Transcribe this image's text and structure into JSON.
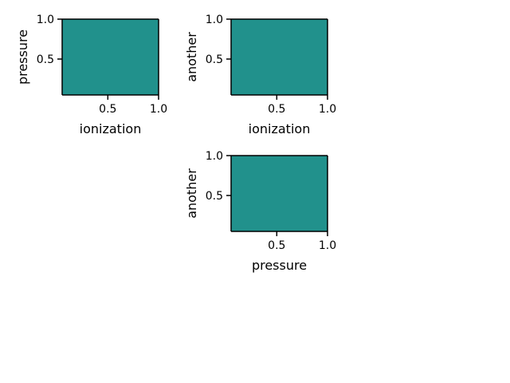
{
  "page": {
    "background": "#ffffff"
  },
  "chart_data": [
    {
      "type": "heatmap",
      "title": "",
      "xlabel": "ionization",
      "ylabel": "pressure",
      "xlim": [
        0.05,
        1.0
      ],
      "ylim": [
        0.05,
        1.0
      ],
      "xticks": [
        0.5,
        1.0
      ],
      "yticks": [
        0.5,
        1.0
      ],
      "xtick_labels": [
        "0.5",
        "1.0"
      ],
      "ytick_labels": [
        "0.5",
        "1.0"
      ],
      "fill_color": "#21918c",
      "grid": false,
      "legend": "none"
    },
    {
      "type": "heatmap",
      "title": "",
      "xlabel": "ionization",
      "ylabel": "another",
      "xlim": [
        0.05,
        1.0
      ],
      "ylim": [
        0.05,
        1.0
      ],
      "xticks": [
        0.5,
        1.0
      ],
      "yticks": [
        0.5,
        1.0
      ],
      "xtick_labels": [
        "0.5",
        "1.0"
      ],
      "ytick_labels": [
        "0.5",
        "1.0"
      ],
      "fill_color": "#21918c",
      "grid": false,
      "legend": "none"
    },
    {
      "type": "heatmap",
      "title": "",
      "xlabel": "pressure",
      "ylabel": "another",
      "xlim": [
        0.05,
        1.0
      ],
      "ylim": [
        0.05,
        1.0
      ],
      "xticks": [
        0.5,
        1.0
      ],
      "yticks": [
        0.5,
        1.0
      ],
      "xtick_labels": [
        "0.5",
        "1.0"
      ],
      "ytick_labels": [
        "0.5",
        "1.0"
      ],
      "fill_color": "#21918c",
      "grid": false,
      "legend": "none"
    }
  ]
}
